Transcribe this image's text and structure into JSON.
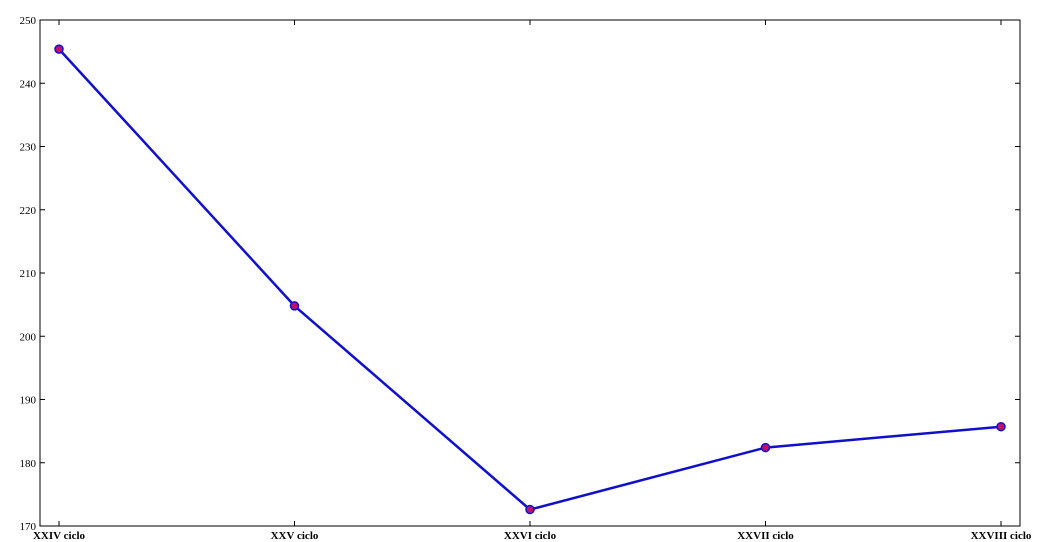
{
  "chart_data": {
    "type": "line",
    "categories": [
      "XXIV ciclo",
      "XXV ciclo",
      "XXVI ciclo",
      "XXVII ciclo",
      "XXVIII ciclo"
    ],
    "series": [
      {
        "values": [
          245.4,
          204.8,
          172.6,
          182.4,
          185.7
        ]
      }
    ],
    "title": "",
    "xlabel": "",
    "ylabel": "",
    "ylim": [
      170,
      250
    ],
    "yticks": [
      170,
      180,
      190,
      200,
      210,
      220,
      230,
      240,
      250
    ],
    "grid": false,
    "legend": "none",
    "colors": {
      "line": "#1010cc",
      "marker_fill": "#c0106c",
      "marker_edge": "#1010cc",
      "axes": "#000000"
    }
  }
}
